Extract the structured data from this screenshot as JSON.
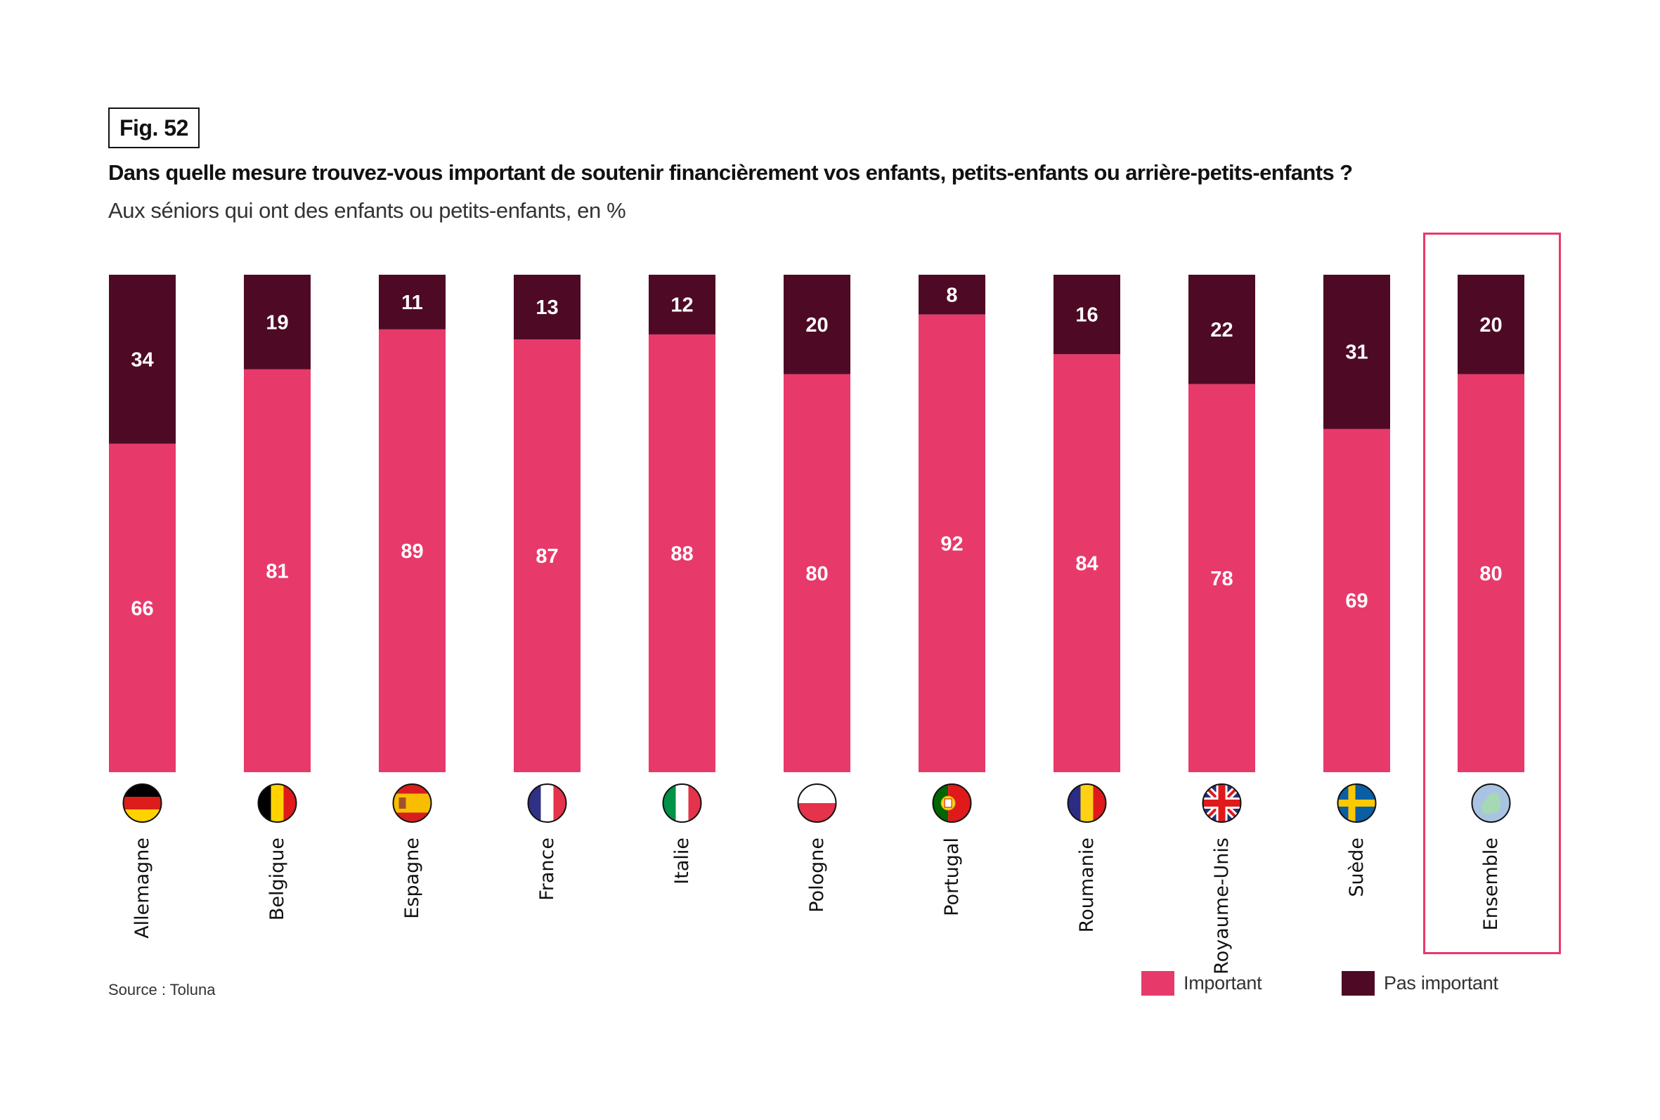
{
  "figure": {
    "label": "Fig. 52",
    "source": "Source : Toluna"
  },
  "colors": {
    "important": "#e8396b",
    "pas_important": "#4e0a24",
    "highlight": "#e8396b",
    "value_label": "#ffffff"
  },
  "chart_data": {
    "type": "bar",
    "stacked": true,
    "orientation": "vertical",
    "title": "Dans quelle mesure trouvez-vous important de soutenir financièrement vos enfants, petits-enfants ou arrière-petits-enfants ?",
    "subtitle": "Aux séniors qui ont des enfants ou petits-enfants, en %",
    "xlabel": "",
    "ylabel": "",
    "ylim": [
      0,
      100
    ],
    "grid": false,
    "legend_position": "bottom-right",
    "categories": [
      "Allemagne",
      "Belgique",
      "Espagne",
      "France",
      "Italie",
      "Pologne",
      "Portugal",
      "Roumanie",
      "Royaume-Unis",
      "Suède",
      "Ensemble"
    ],
    "flags": [
      "flag-germany",
      "flag-belgium",
      "flag-spain",
      "flag-france",
      "flag-italy",
      "flag-poland",
      "flag-portugal",
      "flag-romania",
      "flag-uk",
      "flag-sweden",
      "globe-europe"
    ],
    "highlighted_category": "Ensemble",
    "series": [
      {
        "name": "Important",
        "values": [
          66,
          81,
          89,
          87,
          88,
          80,
          92,
          84,
          78,
          69,
          80
        ]
      },
      {
        "name": "Pas important",
        "values": [
          34,
          19,
          11,
          13,
          12,
          20,
          8,
          16,
          22,
          31,
          20
        ]
      }
    ]
  }
}
